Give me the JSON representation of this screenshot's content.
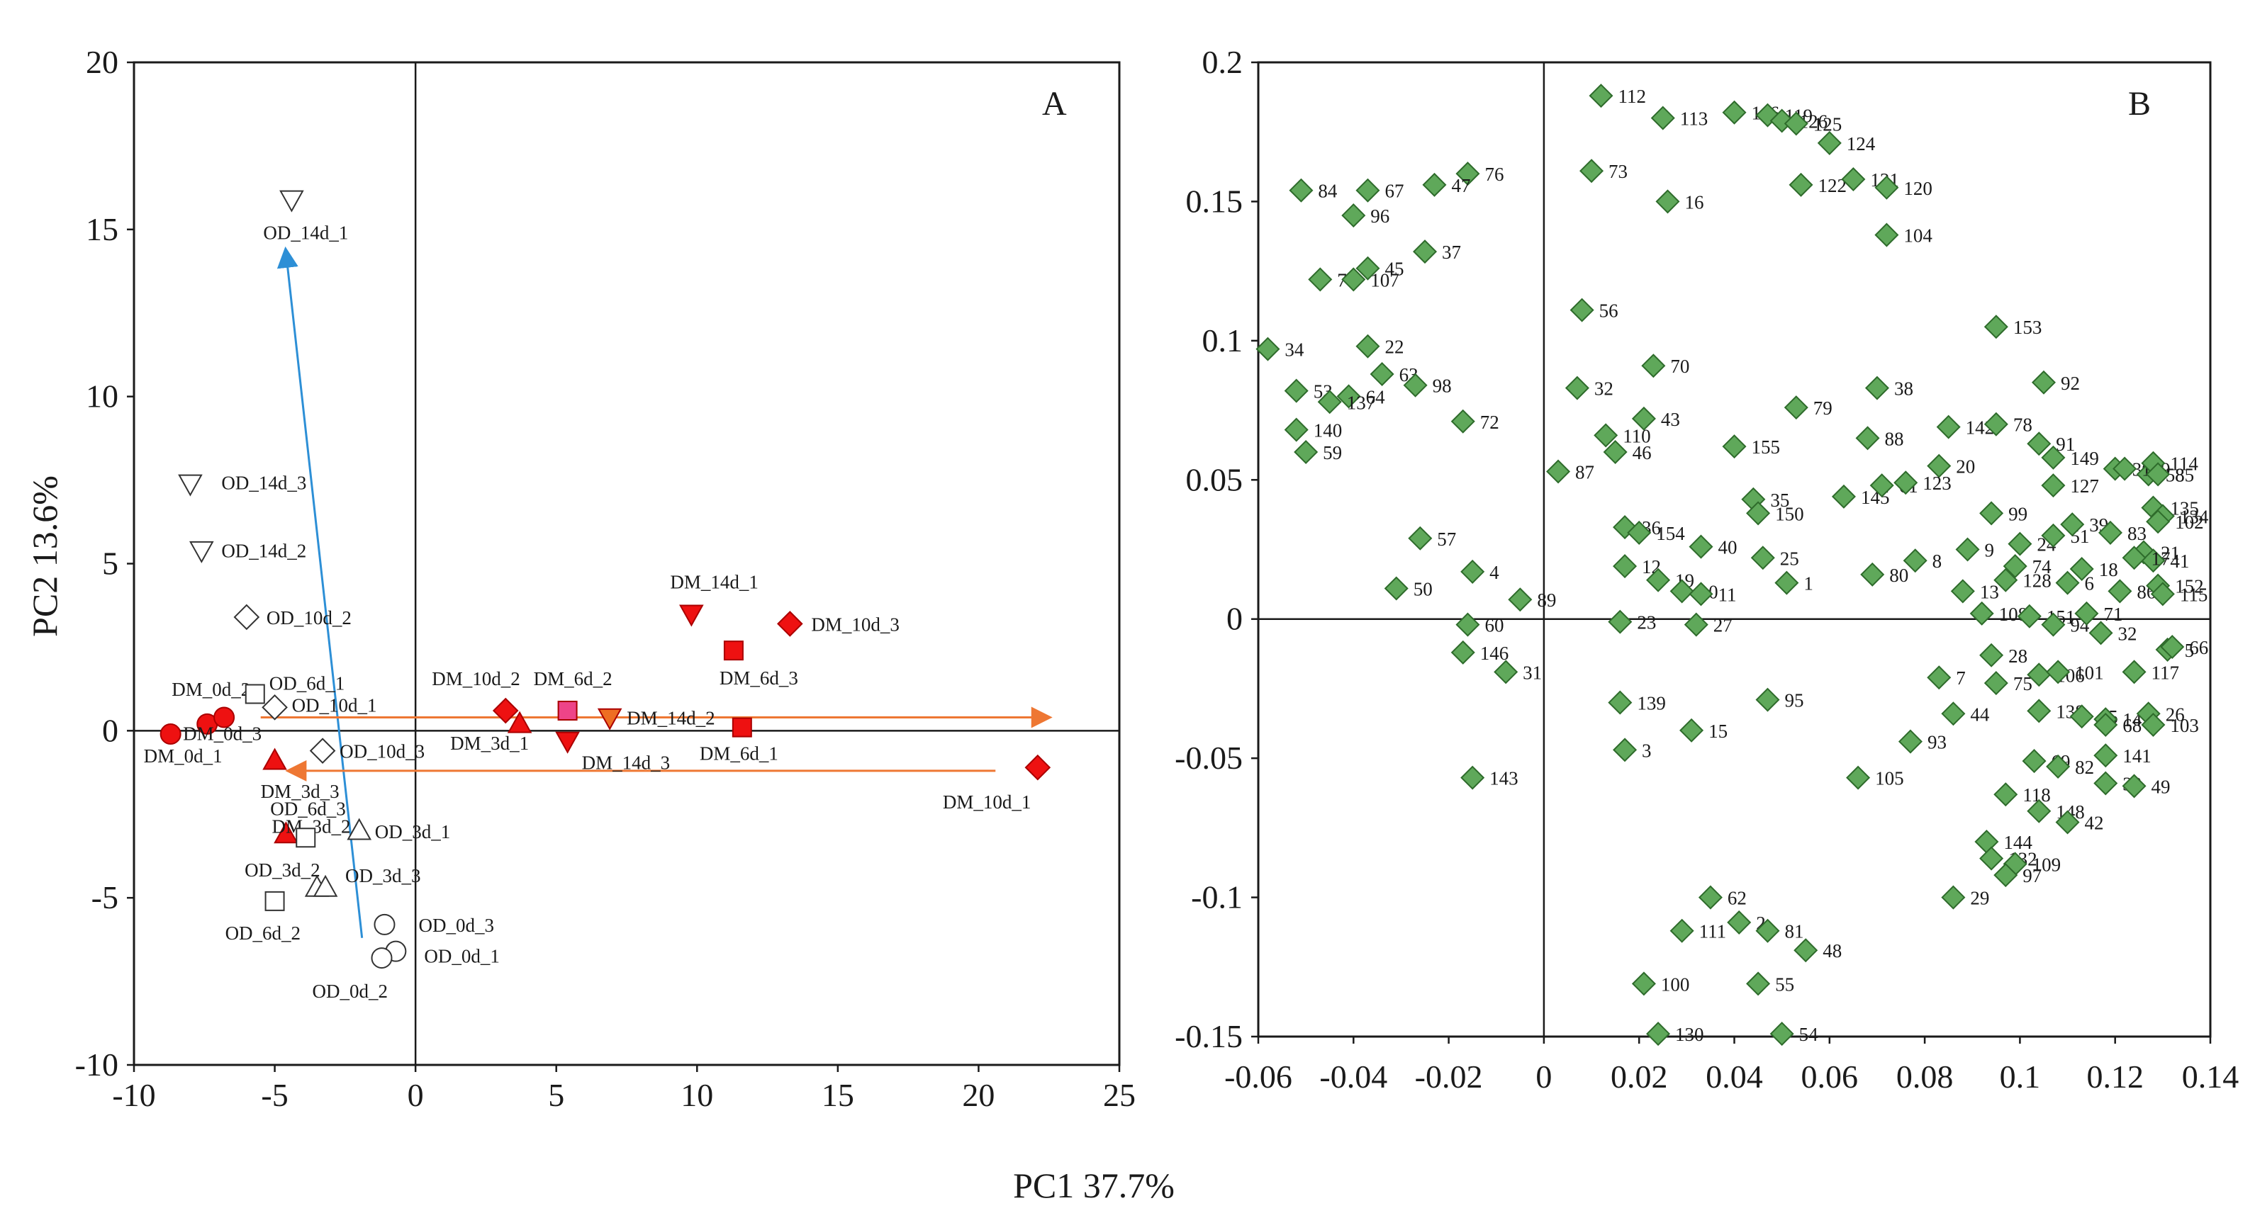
{
  "figure": {
    "xlabel": "PC1 37.7%",
    "ylabel": "PC2 13.6%"
  },
  "chart_data": [
    {
      "type": "scatter",
      "panel": "A",
      "xlim": [
        -10,
        25
      ],
      "ylim": [
        -10,
        20
      ],
      "xticks": [
        "-10",
        "-5",
        "0",
        "5",
        "10",
        "15",
        "20",
        "25"
      ],
      "yticks": [
        "-10",
        "-5",
        "0",
        "5",
        "10",
        "15",
        "20"
      ],
      "grid": false,
      "colors": {
        "dm": "#ee1111",
        "dm_6d_2": "#ee4488",
        "dm_14d_2": "#ee6e22",
        "od": "#ffffff",
        "arrow_od": "#2d8fd6",
        "arrow_dm": "#ee7733"
      },
      "points": [
        {
          "label": "DM_0d_1",
          "x": -8.7,
          "y": -0.1,
          "shape": "circle",
          "fill": "dm"
        },
        {
          "label": "DM_0d_2",
          "x": -7.4,
          "y": 0.2,
          "shape": "circle",
          "fill": "dm"
        },
        {
          "label": "DM_0d_3",
          "x": -6.8,
          "y": 0.4,
          "shape": "circle",
          "fill": "dm"
        },
        {
          "label": "DM_3d_3",
          "x": -5.0,
          "y": -0.9,
          "shape": "triangle-up",
          "fill": "dm"
        },
        {
          "label": "DM_3d_2",
          "x": -4.6,
          "y": -3.1,
          "shape": "triangle-up",
          "fill": "dm"
        },
        {
          "label": "DM_3d_1",
          "x": 3.7,
          "y": 0.2,
          "shape": "triangle-up",
          "fill": "dm"
        },
        {
          "label": "DM_6d_1",
          "x": 11.6,
          "y": 0.1,
          "shape": "square",
          "fill": "dm"
        },
        {
          "label": "DM_6d_2",
          "x": 5.4,
          "y": 0.6,
          "shape": "square",
          "fill": "dm_6d_2"
        },
        {
          "label": "DM_6d_3",
          "x": 11.3,
          "y": 2.4,
          "shape": "square",
          "fill": "dm"
        },
        {
          "label": "DM_10d_1",
          "x": 22.1,
          "y": -1.1,
          "shape": "diamond",
          "fill": "dm"
        },
        {
          "label": "DM_10d_2",
          "x": 3.2,
          "y": 0.6,
          "shape": "diamond",
          "fill": "dm"
        },
        {
          "label": "DM_10d_3",
          "x": 13.3,
          "y": 3.2,
          "shape": "diamond",
          "fill": "dm"
        },
        {
          "label": "DM_14d_1",
          "x": 9.8,
          "y": 3.5,
          "shape": "triangle-down",
          "fill": "dm"
        },
        {
          "label": "DM_14d_2",
          "x": 6.9,
          "y": 0.4,
          "shape": "triangle-down",
          "fill": "dm_14d_2"
        },
        {
          "label": "DM_14d_3",
          "x": 5.4,
          "y": -0.3,
          "shape": "triangle-down",
          "fill": "dm"
        },
        {
          "label": "OD_0d_1",
          "x": -0.7,
          "y": -6.6,
          "shape": "circle",
          "fill": "od"
        },
        {
          "label": "OD_0d_2",
          "x": -1.2,
          "y": -6.8,
          "shape": "circle",
          "fill": "od"
        },
        {
          "label": "OD_0d_3",
          "x": -1.1,
          "y": -5.8,
          "shape": "circle",
          "fill": "od"
        },
        {
          "label": "OD_3d_1",
          "x": -2.0,
          "y": -3.0,
          "shape": "triangle-up",
          "fill": "od"
        },
        {
          "label": "OD_3d_2",
          "x": -3.5,
          "y": -4.7,
          "shape": "triangle-up",
          "fill": "od"
        },
        {
          "label": "OD_3d_3",
          "x": -3.2,
          "y": -4.7,
          "shape": "triangle-up",
          "fill": "od"
        },
        {
          "label": "OD_6d_1",
          "x": -5.7,
          "y": 1.1,
          "shape": "square",
          "fill": "od"
        },
        {
          "label": "OD_6d_2",
          "x": -5.0,
          "y": -5.1,
          "shape": "square",
          "fill": "od"
        },
        {
          "label": "OD_6d_3",
          "x": -3.9,
          "y": -3.2,
          "shape": "square",
          "fill": "od"
        },
        {
          "label": "OD_10d_1",
          "x": -5.0,
          "y": 0.7,
          "shape": "diamond",
          "fill": "od"
        },
        {
          "label": "OD_10d_2",
          "x": -6.0,
          "y": 3.4,
          "shape": "diamond",
          "fill": "od"
        },
        {
          "label": "OD_10d_3",
          "x": -3.3,
          "y": -0.6,
          "shape": "diamond",
          "fill": "od"
        },
        {
          "label": "OD_14d_1",
          "x": -4.4,
          "y": 15.9,
          "shape": "triangle-down",
          "fill": "od"
        },
        {
          "label": "OD_14d_2",
          "x": -7.6,
          "y": 5.4,
          "shape": "triangle-down",
          "fill": "od"
        },
        {
          "label": "OD_14d_3",
          "x": -8.0,
          "y": 7.4,
          "shape": "triangle-down",
          "fill": "od"
        }
      ],
      "arrows": [
        {
          "from": [
            -1.9,
            -6.2
          ],
          "to": [
            -4.6,
            14.3
          ],
          "color": "arrow_od"
        },
        {
          "from": [
            -5.5,
            0.4
          ],
          "to": [
            22.4,
            0.4
          ],
          "color": "arrow_dm"
        },
        {
          "from": [
            20.6,
            -1.2
          ],
          "to": [
            -4.4,
            -1.2
          ],
          "color": "arrow_dm"
        }
      ]
    },
    {
      "type": "scatter",
      "panel": "B",
      "xlim": [
        -0.06,
        0.14
      ],
      "ylim": [
        -0.15,
        0.2
      ],
      "xticks": [
        "-0.06",
        "-0.04",
        "-0.02",
        "0",
        "0.02",
        "0.04",
        "0.06",
        "0.08",
        "0.1",
        "0.12",
        "0.14"
      ],
      "yticks": [
        "-0.15",
        "-0.1",
        "-0.05",
        "0",
        "0.05",
        "0.1",
        "0.15",
        "0.2"
      ],
      "grid": false,
      "marker": "diamond",
      "color": "#5fa85a",
      "points": [
        {
          "label": "112",
          "x": 0.012,
          "y": 0.188
        },
        {
          "label": "113",
          "x": 0.025,
          "y": 0.18
        },
        {
          "label": "116",
          "x": 0.04,
          "y": 0.182
        },
        {
          "label": "119",
          "x": 0.047,
          "y": 0.181
        },
        {
          "label": "126",
          "x": 0.05,
          "y": 0.179
        },
        {
          "label": "125",
          "x": 0.053,
          "y": 0.178
        },
        {
          "label": "124",
          "x": 0.06,
          "y": 0.171
        },
        {
          "label": "73",
          "x": 0.01,
          "y": 0.161
        },
        {
          "label": "76",
          "x": -0.016,
          "y": 0.16
        },
        {
          "label": "84",
          "x": -0.051,
          "y": 0.154
        },
        {
          "label": "67",
          "x": -0.037,
          "y": 0.154
        },
        {
          "label": "47",
          "x": -0.023,
          "y": 0.156
        },
        {
          "label": "96",
          "x": -0.04,
          "y": 0.145
        },
        {
          "label": "122",
          "x": 0.054,
          "y": 0.156
        },
        {
          "label": "131",
          "x": 0.065,
          "y": 0.158
        },
        {
          "label": "120",
          "x": 0.072,
          "y": 0.155
        },
        {
          "label": "16",
          "x": 0.026,
          "y": 0.15
        },
        {
          "label": "104",
          "x": 0.072,
          "y": 0.138
        },
        {
          "label": "37",
          "x": -0.025,
          "y": 0.132
        },
        {
          "label": "45",
          "x": -0.037,
          "y": 0.126
        },
        {
          "label": "77",
          "x": -0.047,
          "y": 0.122
        },
        {
          "label": "107",
          "x": -0.04,
          "y": 0.122
        },
        {
          "label": "56",
          "x": 0.008,
          "y": 0.111
        },
        {
          "label": "153",
          "x": 0.095,
          "y": 0.105
        },
        {
          "label": "34",
          "x": -0.058,
          "y": 0.097
        },
        {
          "label": "22",
          "x": -0.037,
          "y": 0.098
        },
        {
          "label": "63",
          "x": -0.034,
          "y": 0.088
        },
        {
          "label": "70",
          "x": 0.023,
          "y": 0.091
        },
        {
          "label": "53",
          "x": -0.052,
          "y": 0.082
        },
        {
          "label": "64",
          "x": -0.041,
          "y": 0.08
        },
        {
          "label": "98",
          "x": -0.027,
          "y": 0.084
        },
        {
          "label": "32",
          "x": 0.007,
          "y": 0.083
        },
        {
          "label": "92",
          "x": 0.105,
          "y": 0.085
        },
        {
          "label": "137",
          "x": -0.045,
          "y": 0.078
        },
        {
          "label": "38",
          "x": 0.07,
          "y": 0.083
        },
        {
          "label": "79",
          "x": 0.053,
          "y": 0.076
        },
        {
          "label": "43",
          "x": 0.021,
          "y": 0.072
        },
        {
          "label": "72",
          "x": -0.017,
          "y": 0.071
        },
        {
          "label": "140",
          "x": -0.052,
          "y": 0.068
        },
        {
          "label": "110",
          "x": 0.013,
          "y": 0.066
        },
        {
          "label": "88",
          "x": 0.068,
          "y": 0.065
        },
        {
          "label": "142",
          "x": 0.085,
          "y": 0.069
        },
        {
          "label": "78",
          "x": 0.095,
          "y": 0.07
        },
        {
          "label": "91",
          "x": 0.104,
          "y": 0.063
        },
        {
          "label": "30",
          "x": 0.12,
          "y": 0.054
        },
        {
          "label": "58",
          "x": 0.127,
          "y": 0.052
        },
        {
          "label": "59",
          "x": -0.05,
          "y": 0.06
        },
        {
          "label": "46",
          "x": 0.015,
          "y": 0.06
        },
        {
          "label": "155",
          "x": 0.04,
          "y": 0.062
        },
        {
          "label": "149",
          "x": 0.107,
          "y": 0.058
        },
        {
          "label": "129",
          "x": 0.122,
          "y": 0.054
        },
        {
          "label": "114",
          "x": 0.128,
          "y": 0.056
        },
        {
          "label": "85",
          "x": 0.129,
          "y": 0.052
        },
        {
          "label": "87",
          "x": 0.003,
          "y": 0.053
        },
        {
          "label": "20",
          "x": 0.083,
          "y": 0.055
        },
        {
          "label": "36",
          "x": 0.017,
          "y": 0.033
        },
        {
          "label": "154",
          "x": 0.02,
          "y": 0.031
        },
        {
          "label": "35",
          "x": 0.044,
          "y": 0.043
        },
        {
          "label": "150",
          "x": 0.045,
          "y": 0.038
        },
        {
          "label": "145",
          "x": 0.063,
          "y": 0.044
        },
        {
          "label": "61",
          "x": 0.071,
          "y": 0.048
        },
        {
          "label": "123",
          "x": 0.076,
          "y": 0.049
        },
        {
          "label": "99",
          "x": 0.094,
          "y": 0.038
        },
        {
          "label": "127",
          "x": 0.107,
          "y": 0.048
        },
        {
          "label": "135",
          "x": 0.128,
          "y": 0.04
        },
        {
          "label": "134",
          "x": 0.13,
          "y": 0.037
        },
        {
          "label": "102",
          "x": 0.129,
          "y": 0.035
        },
        {
          "label": "57",
          "x": -0.026,
          "y": 0.029
        },
        {
          "label": "4",
          "x": -0.015,
          "y": 0.017
        },
        {
          "label": "40",
          "x": 0.033,
          "y": 0.026
        },
        {
          "label": "25",
          "x": 0.046,
          "y": 0.022
        },
        {
          "label": "9",
          "x": 0.089,
          "y": 0.025
        },
        {
          "label": "24",
          "x": 0.1,
          "y": 0.027
        },
        {
          "label": "51",
          "x": 0.107,
          "y": 0.03
        },
        {
          "label": "39",
          "x": 0.111,
          "y": 0.034
        },
        {
          "label": "83",
          "x": 0.119,
          "y": 0.031
        },
        {
          "label": "21",
          "x": 0.126,
          "y": 0.024
        },
        {
          "label": "41",
          "x": 0.128,
          "y": 0.021
        },
        {
          "label": "12",
          "x": 0.017,
          "y": 0.019
        },
        {
          "label": "8",
          "x": 0.078,
          "y": 0.021
        },
        {
          "label": "74",
          "x": 0.099,
          "y": 0.019
        },
        {
          "label": "18",
          "x": 0.113,
          "y": 0.018
        },
        {
          "label": "17",
          "x": 0.124,
          "y": 0.022
        },
        {
          "label": "50",
          "x": -0.031,
          "y": 0.011
        },
        {
          "label": "19",
          "x": 0.024,
          "y": 0.014
        },
        {
          "label": "80",
          "x": 0.069,
          "y": 0.016
        },
        {
          "label": "1",
          "x": 0.051,
          "y": 0.013
        },
        {
          "label": "128",
          "x": 0.097,
          "y": 0.014
        },
        {
          "label": "6",
          "x": 0.11,
          "y": 0.013
        },
        {
          "label": "86",
          "x": 0.121,
          "y": 0.01
        },
        {
          "label": "152",
          "x": 0.129,
          "y": 0.012
        },
        {
          "label": "115",
          "x": 0.13,
          "y": 0.009
        },
        {
          "label": "60",
          "x": -0.016,
          "y": -0.002
        },
        {
          "label": "89",
          "x": -0.005,
          "y": 0.007
        },
        {
          "label": "23",
          "x": 0.016,
          "y": -0.001
        },
        {
          "label": "10",
          "x": 0.029,
          "y": 0.01
        },
        {
          "label": "11",
          "x": 0.033,
          "y": 0.009
        },
        {
          "label": "27",
          "x": 0.032,
          "y": -0.002
        },
        {
          "label": "13",
          "x": 0.088,
          "y": 0.01
        },
        {
          "label": "108",
          "x": 0.092,
          "y": 0.002
        },
        {
          "label": "151",
          "x": 0.102,
          "y": 0.001
        },
        {
          "label": "94",
          "x": 0.107,
          "y": -0.002
        },
        {
          "label": "71",
          "x": 0.114,
          "y": 0.002
        },
        {
          "label": "32",
          "x": 0.117,
          "y": -0.005
        },
        {
          "label": "146",
          "x": -0.017,
          "y": -0.012
        },
        {
          "label": "5",
          "x": 0.131,
          "y": -0.011
        },
        {
          "label": "66",
          "x": 0.132,
          "y": -0.01
        },
        {
          "label": "31",
          "x": -0.008,
          "y": -0.019
        },
        {
          "label": "28",
          "x": 0.094,
          "y": -0.013
        },
        {
          "label": "7",
          "x": 0.083,
          "y": -0.021
        },
        {
          "label": "75",
          "x": 0.095,
          "y": -0.023
        },
        {
          "label": "106",
          "x": 0.104,
          "y": -0.02
        },
        {
          "label": "101",
          "x": 0.108,
          "y": -0.019
        },
        {
          "label": "117",
          "x": 0.124,
          "y": -0.019
        },
        {
          "label": "139",
          "x": 0.016,
          "y": -0.03
        },
        {
          "label": "95",
          "x": 0.047,
          "y": -0.029
        },
        {
          "label": "44",
          "x": 0.086,
          "y": -0.034
        },
        {
          "label": "138",
          "x": 0.104,
          "y": -0.033
        },
        {
          "label": "65",
          "x": 0.113,
          "y": -0.035
        },
        {
          "label": "14",
          "x": 0.118,
          "y": -0.036
        },
        {
          "label": "26",
          "x": 0.127,
          "y": -0.034
        },
        {
          "label": "68",
          "x": 0.118,
          "y": -0.038
        },
        {
          "label": "103",
          "x": 0.128,
          "y": -0.038
        },
        {
          "label": "15",
          "x": 0.031,
          "y": -0.04
        },
        {
          "label": "93",
          "x": 0.077,
          "y": -0.044
        },
        {
          "label": "3",
          "x": 0.017,
          "y": -0.047
        },
        {
          "label": "69",
          "x": 0.103,
          "y": -0.051
        },
        {
          "label": "82",
          "x": 0.108,
          "y": -0.053
        },
        {
          "label": "141",
          "x": 0.118,
          "y": -0.049
        },
        {
          "label": "105",
          "x": 0.066,
          "y": -0.057
        },
        {
          "label": "143",
          "x": -0.015,
          "y": -0.057
        },
        {
          "label": "33",
          "x": 0.118,
          "y": -0.059
        },
        {
          "label": "49",
          "x": 0.124,
          "y": -0.06
        },
        {
          "label": "118",
          "x": 0.097,
          "y": -0.063
        },
        {
          "label": "148",
          "x": 0.104,
          "y": -0.069
        },
        {
          "label": "42",
          "x": 0.11,
          "y": -0.073
        },
        {
          "label": "144",
          "x": 0.093,
          "y": -0.08
        },
        {
          "label": "132",
          "x": 0.094,
          "y": -0.086
        },
        {
          "label": "109",
          "x": 0.099,
          "y": -0.088
        },
        {
          "label": "97",
          "x": 0.097,
          "y": -0.092
        },
        {
          "label": "29",
          "x": 0.086,
          "y": -0.1
        },
        {
          "label": "62",
          "x": 0.035,
          "y": -0.1
        },
        {
          "label": "2",
          "x": 0.041,
          "y": -0.109
        },
        {
          "label": "81",
          "x": 0.047,
          "y": -0.112
        },
        {
          "label": "111",
          "x": 0.029,
          "y": -0.112
        },
        {
          "label": "48",
          "x": 0.055,
          "y": -0.119
        },
        {
          "label": "100",
          "x": 0.021,
          "y": -0.131
        },
        {
          "label": "55",
          "x": 0.045,
          "y": -0.131
        },
        {
          "label": "130",
          "x": 0.024,
          "y": -0.149
        },
        {
          "label": "54",
          "x": 0.05,
          "y": -0.149
        }
      ]
    }
  ]
}
